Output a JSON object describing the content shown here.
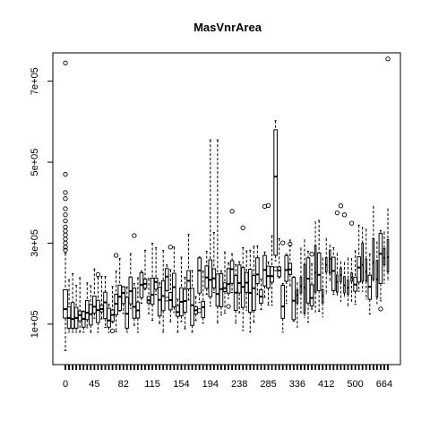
{
  "chart_data": {
    "type": "boxplot",
    "title": "MasVnrArea",
    "xlabel": "",
    "ylabel": "",
    "ylim": [
      0,
      770000
    ],
    "y_ticks": [
      100000,
      300000,
      500000,
      700000
    ],
    "y_tick_labels": [
      "1e+05",
      "3e+05",
      "5e+05",
      "7e+05"
    ],
    "x_tick_labels": [
      "0",
      "45",
      "82",
      "115",
      "154",
      "194",
      "238",
      "285",
      "336",
      "412",
      "500",
      "664"
    ],
    "n_categories": 90,
    "grid": false,
    "legend": "none",
    "first_group": {
      "category": "0",
      "whisker_low": 34900,
      "q1": 115000,
      "median": 137000,
      "q3": 185000,
      "whisker_high": 275000,
      "outliers": [
        283000,
        290000,
        300000,
        310000,
        320000,
        330000,
        340000,
        355000,
        370000,
        385000,
        410000,
        425000,
        470000,
        745000
      ]
    },
    "summary_note_values": {
      "max_box_top": 580000,
      "max_point": 755000
    },
    "colors": {
      "ink": "#000000",
      "background": "#ffffff"
    }
  }
}
